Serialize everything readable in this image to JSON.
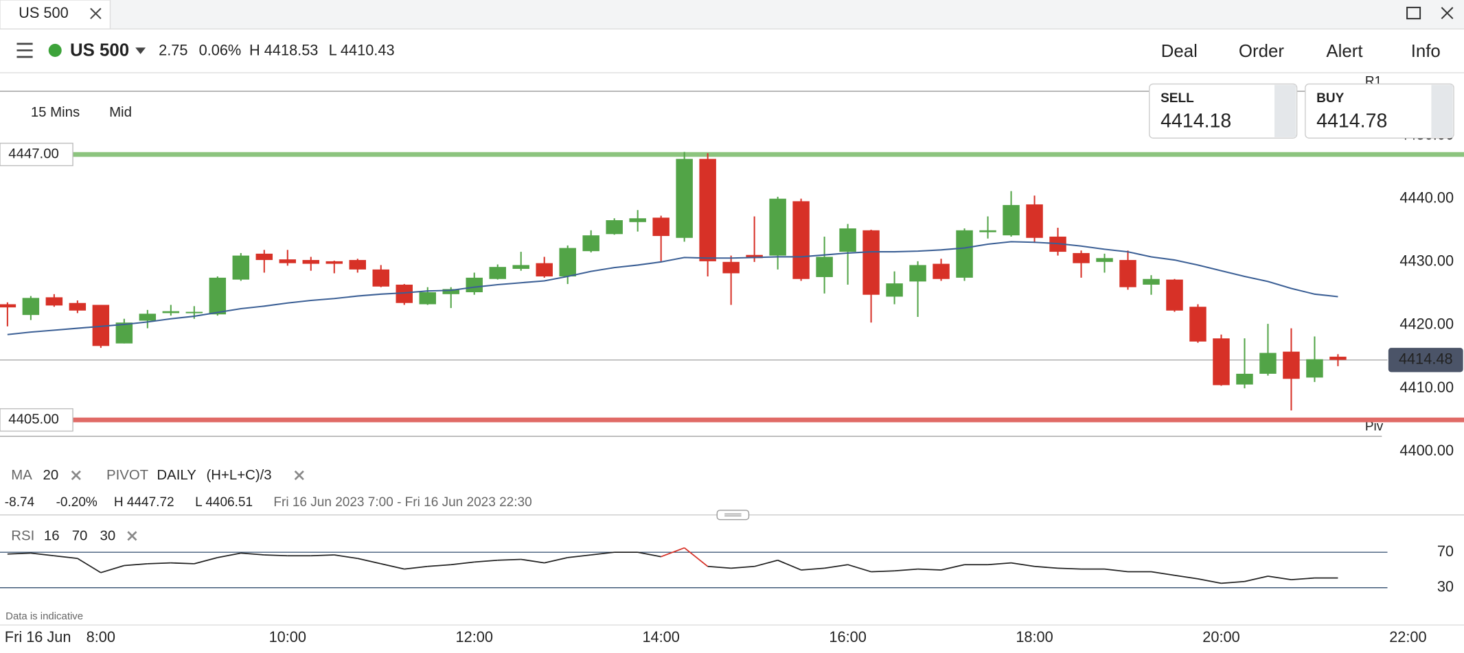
{
  "tab": {
    "title": "US 500"
  },
  "header": {
    "instrument": "US 500",
    "change": "2.75",
    "change_pct": "0.06%",
    "high": "H 4418.53",
    "low": "L 4410.43",
    "menu": [
      "Deal",
      "Order",
      "Alert",
      "Info"
    ]
  },
  "toolbar": {
    "interval": "15 Mins",
    "price_type": "Mid"
  },
  "sell": {
    "label": "SELL",
    "price": "4414.18"
  },
  "buy": {
    "label": "BUY",
    "price": "4414.78"
  },
  "indicators": {
    "ma": {
      "name": "MA",
      "period": "20"
    },
    "pivot": {
      "name": "PIVOT",
      "period": "DAILY",
      "formula": "(H+L+C)/3"
    }
  },
  "stats": {
    "change": "-8.74",
    "change_pct": "-0.20%",
    "high": "H 4447.72",
    "low": "L 4406.51",
    "range": "Fri 16 Jun 2023 7:00 - Fri 16 Jun 2023 22:30"
  },
  "rsi_legend": {
    "name": "RSI",
    "period": "16",
    "upper": "70",
    "lower": "30"
  },
  "footnote": "Data is indicative",
  "date_label": "Fri 16 Jun",
  "chart_data": {
    "type": "candlestick",
    "x": [
      7,
      7.25,
      7.5,
      7.75,
      8,
      8.25,
      8.5,
      8.75,
      9,
      9.25,
      9.5,
      9.75,
      10,
      10.25,
      10.5,
      10.75,
      11,
      11.25,
      11.5,
      11.75,
      12,
      12.25,
      12.5,
      12.75,
      13,
      13.25,
      13.5,
      13.75,
      14,
      14.25,
      14.5,
      14.75,
      15,
      15.25,
      15.5,
      15.75,
      16,
      16.25,
      16.5,
      16.75,
      17,
      17.25,
      17.5,
      17.75,
      18,
      18.25,
      18.5,
      18.75,
      19,
      19.25,
      19.5,
      19.75,
      20,
      20.25,
      20.5,
      20.75,
      21,
      21.25
    ],
    "open": [
      4423.3,
      4421.6,
      4424.4,
      4423.5,
      4423.2,
      4417.1,
      4420.7,
      4421.9,
      4422,
      4421.7,
      4427.2,
      4431.3,
      4430.4,
      4430.3,
      4430.1,
      4430.3,
      4428.8,
      4426.4,
      4423.3,
      4424.9,
      4425.2,
      4427.3,
      4428.9,
      4429.8,
      4427.7,
      4431.7,
      4434.4,
      4436.3,
      4437,
      4433.8,
      4446.3,
      4430,
      4431.1,
      4431,
      4439.6,
      4427.6,
      4431.6,
      4435,
      4424.5,
      4426.9,
      4429.7,
      4427.5,
      4434.7,
      4434.2,
      4439.1,
      4434,
      4431.4,
      4430,
      4430.3,
      4426.4,
      4427.2,
      4422.9,
      4417.9,
      4410.6,
      4412.3,
      4415.8,
      4411.7,
      4415
    ],
    "high": [
      4423.6,
      4424.6,
      4424.9,
      4423.9,
      4423.2,
      4421,
      4422.4,
      4423.2,
      4423,
      4427.7,
      4431.4,
      4431.9,
      4431.9,
      4430.8,
      4430.2,
      4430.5,
      4429.5,
      4426.5,
      4426,
      4426,
      4428.3,
      4429.6,
      4431.6,
      4430.8,
      4432.6,
      4435,
      4436.9,
      4438.2,
      4437.3,
      4447.4,
      4447.2,
      4431,
      4437.2,
      4440.3,
      4440,
      4434,
      4436,
      4435.1,
      4428.5,
      4430.1,
      4430.5,
      4435.3,
      4437.2,
      4441.2,
      4440.5,
      4435.4,
      4431.8,
      4431.3,
      4431.8,
      4427.9,
      4427.3,
      4423.3,
      4418.5,
      4417.9,
      4420.2,
      4419.5,
      4418.2,
      4415.4
    ],
    "low": [
      4419.8,
      4420.8,
      4422.9,
      4421.9,
      4416.4,
      4417.1,
      4419.5,
      4421.5,
      4421,
      4421.5,
      4427,
      4428.3,
      4429.4,
      4428.6,
      4428.2,
      4428.3,
      4426,
      4423.2,
      4423.2,
      4422.7,
      4424.8,
      4427.2,
      4428.6,
      4427.5,
      4426.5,
      4431.5,
      4434.3,
      4434.8,
      4430.1,
      4433.2,
      4427.7,
      4423.2,
      4430,
      4428.8,
      4427,
      4425,
      4426.4,
      4420.4,
      4423.3,
      4421.3,
      4427,
      4427,
      4433.7,
      4434,
      4433,
      4431,
      4427.5,
      4428.3,
      4425.6,
      4424.8,
      4422.1,
      4417.2,
      4410.4,
      4410,
      4412,
      4406.5,
      4411,
      4413.5
    ],
    "close": [
      4422.8,
      4424.3,
      4423.1,
      4422.3,
      4416.7,
      4420.4,
      4421.8,
      4422.2,
      4422.1,
      4427.5,
      4431,
      4430.3,
      4429.8,
      4429.7,
      4429.7,
      4428.8,
      4426.1,
      4423.5,
      4425.2,
      4425.7,
      4427.5,
      4429.2,
      4429.5,
      4427.7,
      4432.2,
      4434.2,
      4436.6,
      4436.9,
      4434.1,
      4446.3,
      4430.1,
      4428.2,
      4430.6,
      4440,
      4427.3,
      4430.8,
      4435.3,
      4424.8,
      4426.6,
      4429.5,
      4427.3,
      4435,
      4435,
      4439,
      4433.8,
      4431.6,
      4429.8,
      4430.6,
      4426,
      4427.3,
      4422.3,
      4417.4,
      4410.5,
      4412.3,
      4415.6,
      4411.5,
      4414.6,
      4414.5
    ],
    "ma": [
      4418.5,
      4418.9,
      4419.2,
      4419.5,
      4419.8,
      4420.1,
      4420.5,
      4421,
      4421.4,
      4422,
      4422.6,
      4423,
      4423.5,
      4423.9,
      4424.2,
      4424.6,
      4424.9,
      4425.1,
      4425.4,
      4425.5,
      4426,
      4426.4,
      4426.7,
      4427,
      4427.7,
      4428.5,
      4429.1,
      4429.5,
      4430,
      4430.7,
      4430.6,
      4430.6,
      4430.7,
      4430.8,
      4430.8,
      4431.1,
      4431.4,
      4431.6,
      4431.6,
      4431.7,
      4431.9,
      4432.2,
      4432.8,
      4433.2,
      4433.1,
      4432.9,
      4432.5,
      4432,
      4431.6,
      4430.8,
      4430.3,
      4429.5,
      4428.6,
      4427.7,
      4426.9,
      4425.8,
      4424.9,
      4424.5
    ],
    "up_color": "#52a447",
    "down_color": "#d73127",
    "ma_color": "#3b5f95",
    "xlim": [
      6.92,
      22.6
    ],
    "xticks": [
      {
        "value": 8,
        "label": "8:00"
      },
      {
        "value": 10,
        "label": "10:00"
      },
      {
        "value": 12,
        "label": "12:00"
      },
      {
        "value": 14,
        "label": "14:00"
      },
      {
        "value": 16,
        "label": "16:00"
      },
      {
        "value": 18,
        "label": "18:00"
      },
      {
        "value": 20,
        "label": "20:00"
      },
      {
        "value": 22,
        "label": "22:00"
      }
    ],
    "ylim": [
      4400,
      4460
    ],
    "yticks": [
      {
        "value": 4400,
        "label": "4400.00"
      },
      {
        "value": 4410,
        "label": "4410.00"
      },
      {
        "value": 4420,
        "label": "4420.00"
      },
      {
        "value": 4430,
        "label": "4430.00"
      },
      {
        "value": 4440,
        "label": "4440.00"
      },
      {
        "value": 4450,
        "label": "4450.00"
      }
    ],
    "grid": true,
    "levels": [
      {
        "value": 4447,
        "label": "4447.00",
        "color": "#8cc47e"
      },
      {
        "value": 4405,
        "label": "4405.00",
        "color": "#e06a66"
      }
    ],
    "pivots": [
      {
        "value": 4457,
        "label": "R1"
      },
      {
        "value": 4402.4,
        "label": "Piv"
      }
    ],
    "current": {
      "value": 4414.48,
      "label": "4414.48"
    },
    "rsi": {
      "values": [
        68,
        69,
        66,
        63,
        47,
        55,
        57,
        58,
        57,
        64,
        69,
        67,
        66,
        66,
        67,
        63,
        57,
        51,
        54,
        56,
        59,
        61,
        62,
        58,
        64,
        67,
        70,
        70,
        65,
        75,
        54,
        52,
        54,
        61,
        50,
        52,
        56,
        48,
        49,
        51,
        50,
        56,
        56,
        58,
        54,
        52,
        51,
        51,
        48,
        48,
        44,
        40,
        35,
        37,
        43,
        39,
        41,
        41
      ],
      "ylim": [
        30,
        70
      ],
      "yticks": [
        70,
        30
      ],
      "color": "#222",
      "over_color": "#d73127",
      "level_color": "#2d4a6b"
    }
  }
}
